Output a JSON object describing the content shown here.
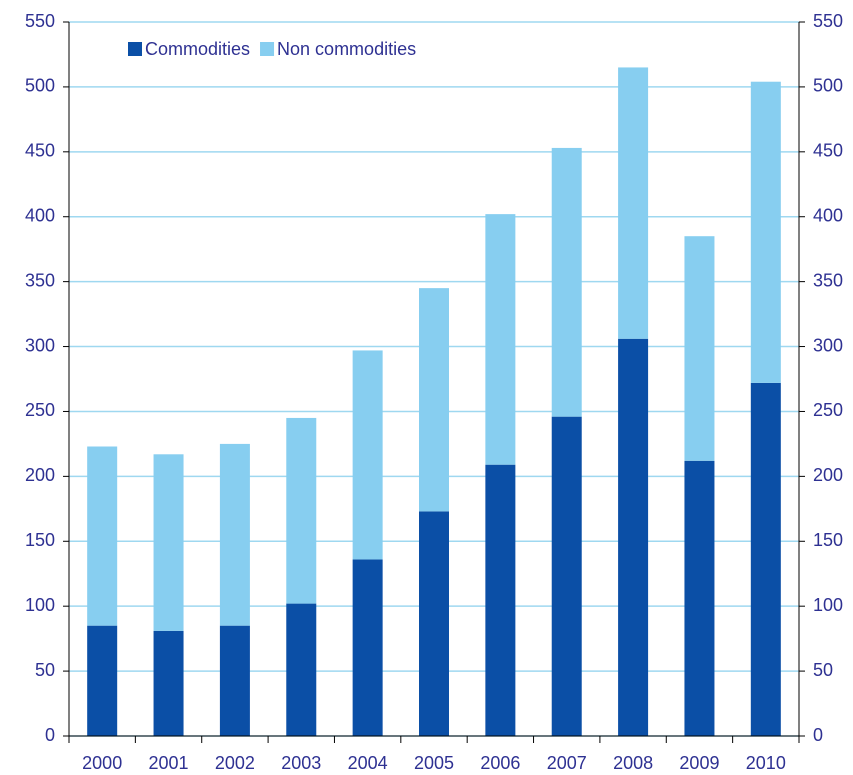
{
  "chart_data": {
    "type": "bar",
    "stacked": true,
    "categories": [
      "2000",
      "2001",
      "2002",
      "2003",
      "2004",
      "2005",
      "2006",
      "2007",
      "2008",
      "2009",
      "2010"
    ],
    "series": [
      {
        "name": "Commodities",
        "color": "#0b4fa6",
        "values": [
          85,
          81,
          85,
          102,
          136,
          173,
          209,
          246,
          306,
          212,
          272
        ]
      },
      {
        "name": "Non commodities",
        "color": "#87cef0",
        "values": [
          138,
          136,
          140,
          143,
          161,
          172,
          193,
          207,
          209,
          173,
          232
        ]
      }
    ],
    "ylim": [
      0,
      550
    ],
    "yticks": [
      0,
      50,
      100,
      150,
      200,
      250,
      300,
      350,
      400,
      450,
      500,
      550
    ],
    "y2lim": [
      0,
      550
    ],
    "y2ticks": [
      0,
      50,
      100,
      150,
      200,
      250,
      300,
      350,
      400,
      450,
      500,
      550
    ],
    "grid": true,
    "legend": "top-left"
  }
}
